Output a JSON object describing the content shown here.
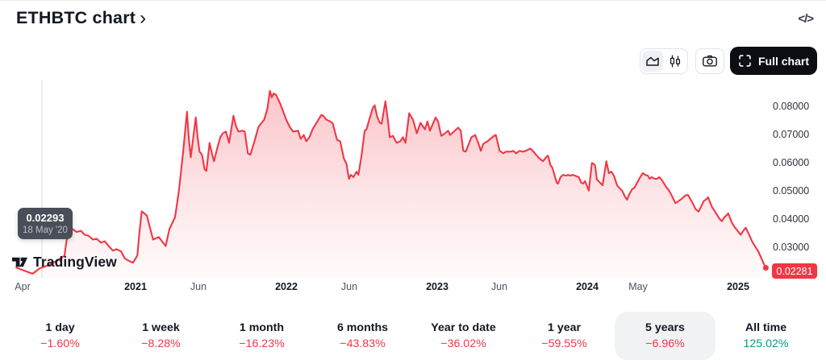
{
  "header": {
    "title": "ETHBTC chart",
    "chevron": "›",
    "code_icon": "</>"
  },
  "toolbar": {
    "full_chart_label": "Full chart",
    "icons": [
      "area-chart-icon",
      "candlestick-icon",
      "camera-icon",
      "fullscreen-icon"
    ],
    "selected_chart_type": "area"
  },
  "watermark": {
    "text": "TradingView"
  },
  "colors": {
    "accent_red": "#F23645",
    "up_green": "#089981",
    "text_dark": "#131722",
    "pill_bg": "#F1F2F4",
    "tooltip_bg": "#4A4E58",
    "border": "#E1E3EA",
    "button_black": "#0C0E13"
  },
  "chart_data": {
    "type": "area",
    "symbol": "ETHBTC",
    "grid": false,
    "line_color": "#F23645",
    "fill": "red gradient fading downward",
    "last_price": "0.02281",
    "last_price_value": 0.02281,
    "tooltip": {
      "price": "0.02293",
      "date": "18 May '20",
      "t": 1.55
    },
    "x_axis": {
      "t_unit": "months since Apr 2020",
      "labels": [
        {
          "text": "Apr",
          "t": 0,
          "bold": false
        },
        {
          "text": "2021",
          "t": 9,
          "bold": true
        },
        {
          "text": "Jun",
          "t": 14,
          "bold": false
        },
        {
          "text": "2022",
          "t": 21,
          "bold": true
        },
        {
          "text": "Jun",
          "t": 26,
          "bold": false
        },
        {
          "text": "2023",
          "t": 33,
          "bold": true
        },
        {
          "text": "Jun",
          "t": 38,
          "bold": false
        },
        {
          "text": "2024",
          "t": 45,
          "bold": true
        },
        {
          "text": "May",
          "t": 49,
          "bold": false
        },
        {
          "text": "2025",
          "t": 57,
          "bold": true
        }
      ]
    },
    "y_axis": {
      "ticks": [
        0.08,
        0.07,
        0.06,
        0.05,
        0.04,
        0.03
      ],
      "tick_labels": [
        "0.08000",
        "0.07000",
        "0.06000",
        "0.05000",
        "0.04000",
        "0.03000"
      ],
      "range": [
        0.02,
        0.088
      ]
    },
    "series": [
      {
        "name": "ETHBTC",
        "color": "#F23645",
        "points": [
          [
            -0.5,
            0.0229
          ],
          [
            0.15,
            0.0218
          ],
          [
            0.8,
            0.0207
          ],
          [
            1.4,
            0.0227
          ],
          [
            1.55,
            0.0229
          ],
          [
            2.1,
            0.0238
          ],
          [
            2.7,
            0.0252
          ],
          [
            3.35,
            0.0271
          ],
          [
            3.5,
            0.0323
          ],
          [
            3.7,
            0.0351
          ],
          [
            4.0,
            0.0365
          ],
          [
            4.3,
            0.0355
          ],
          [
            4.65,
            0.0359
          ],
          [
            4.95,
            0.0345
          ],
          [
            5.25,
            0.0342
          ],
          [
            5.6,
            0.0328
          ],
          [
            5.9,
            0.0331
          ],
          [
            6.25,
            0.0317
          ],
          [
            6.55,
            0.0322
          ],
          [
            6.9,
            0.0303
          ],
          [
            7.2,
            0.0289
          ],
          [
            7.5,
            0.0294
          ],
          [
            7.85,
            0.0286
          ],
          [
            8.15,
            0.0261
          ],
          [
            8.5,
            0.0252
          ],
          [
            8.8,
            0.0246
          ],
          [
            9.15,
            0.0272
          ],
          [
            9.3,
            0.035
          ],
          [
            9.5,
            0.0428
          ],
          [
            9.9,
            0.0413
          ],
          [
            10.4,
            0.0328
          ],
          [
            10.85,
            0.0337
          ],
          [
            11.4,
            0.0305
          ],
          [
            11.7,
            0.0365
          ],
          [
            12.15,
            0.0407
          ],
          [
            12.45,
            0.0498
          ],
          [
            12.8,
            0.064
          ],
          [
            13.1,
            0.078
          ],
          [
            13.25,
            0.0685
          ],
          [
            13.4,
            0.0619
          ],
          [
            13.6,
            0.069
          ],
          [
            13.8,
            0.076
          ],
          [
            13.95,
            0.069
          ],
          [
            14.1,
            0.0639
          ],
          [
            14.3,
            0.0628
          ],
          [
            14.5,
            0.0577
          ],
          [
            14.65,
            0.0571
          ],
          [
            14.9,
            0.067
          ],
          [
            15.1,
            0.063
          ],
          [
            15.25,
            0.0605
          ],
          [
            15.5,
            0.065
          ],
          [
            15.75,
            0.069
          ],
          [
            15.95,
            0.0704
          ],
          [
            16.2,
            0.071
          ],
          [
            16.45,
            0.067
          ],
          [
            16.8,
            0.0766
          ],
          [
            17.0,
            0.073
          ],
          [
            17.2,
            0.071
          ],
          [
            17.5,
            0.0713
          ],
          [
            17.7,
            0.071
          ],
          [
            17.95,
            0.0633
          ],
          [
            18.15,
            0.0628
          ],
          [
            18.5,
            0.068
          ],
          [
            18.8,
            0.0727
          ],
          [
            19.05,
            0.0741
          ],
          [
            19.25,
            0.0752
          ],
          [
            19.5,
            0.079
          ],
          [
            19.7,
            0.0854
          ],
          [
            19.85,
            0.0831
          ],
          [
            20.0,
            0.0845
          ],
          [
            20.2,
            0.084
          ],
          [
            20.5,
            0.0811
          ],
          [
            20.7,
            0.0789
          ],
          [
            21.0,
            0.0752
          ],
          [
            21.3,
            0.0725
          ],
          [
            21.55,
            0.071
          ],
          [
            21.95,
            0.0713
          ],
          [
            22.15,
            0.0684
          ],
          [
            22.4,
            0.0698
          ],
          [
            22.6,
            0.0676
          ],
          [
            22.85,
            0.069
          ],
          [
            23.1,
            0.0718
          ],
          [
            23.4,
            0.074
          ],
          [
            23.8,
            0.0769
          ],
          [
            23.95,
            0.0766
          ],
          [
            24.2,
            0.0752
          ],
          [
            24.5,
            0.0746
          ],
          [
            24.7,
            0.074
          ],
          [
            25.05,
            0.0681
          ],
          [
            25.3,
            0.0676
          ],
          [
            25.6,
            0.0614
          ],
          [
            25.8,
            0.0597
          ],
          [
            26.0,
            0.0543
          ],
          [
            26.15,
            0.0557
          ],
          [
            26.35,
            0.0549
          ],
          [
            26.6,
            0.0568
          ],
          [
            26.75,
            0.0557
          ],
          [
            27.0,
            0.0625
          ],
          [
            27.25,
            0.0713
          ],
          [
            27.4,
            0.0718
          ],
          [
            27.6,
            0.075
          ],
          [
            27.9,
            0.0794
          ],
          [
            28.05,
            0.0803
          ],
          [
            28.25,
            0.0762
          ],
          [
            28.45,
            0.0741
          ],
          [
            28.6,
            0.0738
          ],
          [
            28.9,
            0.0817
          ],
          [
            29.1,
            0.075
          ],
          [
            29.25,
            0.069
          ],
          [
            29.5,
            0.0695
          ],
          [
            29.8,
            0.067
          ],
          [
            30.1,
            0.0676
          ],
          [
            30.3,
            0.069
          ],
          [
            30.5,
            0.067
          ],
          [
            30.8,
            0.0775
          ],
          [
            31.1,
            0.0752
          ],
          [
            31.4,
            0.0704
          ],
          [
            31.7,
            0.0741
          ],
          [
            32.05,
            0.0718
          ],
          [
            32.25,
            0.0746
          ],
          [
            32.45,
            0.0713
          ],
          [
            32.9,
            0.076
          ],
          [
            33.1,
            0.0746
          ],
          [
            33.35,
            0.0695
          ],
          [
            33.65,
            0.0704
          ],
          [
            33.9,
            0.0713
          ],
          [
            34.05,
            0.0698
          ],
          [
            34.35,
            0.071
          ],
          [
            34.7,
            0.0724
          ],
          [
            34.9,
            0.0713
          ],
          [
            35.1,
            0.0642
          ],
          [
            35.3,
            0.0639
          ],
          [
            35.75,
            0.069
          ],
          [
            36.05,
            0.0698
          ],
          [
            36.3,
            0.067
          ],
          [
            36.5,
            0.0642
          ],
          [
            36.7,
            0.0667
          ],
          [
            37.05,
            0.0676
          ],
          [
            37.25,
            0.0684
          ],
          [
            37.55,
            0.0695
          ],
          [
            37.7,
            0.0698
          ],
          [
            38.0,
            0.0642
          ],
          [
            38.3,
            0.0633
          ],
          [
            38.5,
            0.0639
          ],
          [
            38.9,
            0.0639
          ],
          [
            39.1,
            0.0642
          ],
          [
            39.3,
            0.0633
          ],
          [
            39.6,
            0.0642
          ],
          [
            39.8,
            0.0639
          ],
          [
            40.1,
            0.0642
          ],
          [
            40.3,
            0.0647
          ],
          [
            40.45,
            0.065
          ],
          [
            40.7,
            0.0639
          ],
          [
            40.9,
            0.0628
          ],
          [
            41.2,
            0.0614
          ],
          [
            41.45,
            0.0605
          ],
          [
            41.7,
            0.0619
          ],
          [
            41.85,
            0.0625
          ],
          [
            42.05,
            0.0591
          ],
          [
            42.2,
            0.0582
          ],
          [
            42.55,
            0.0529
          ],
          [
            42.65,
            0.0526
          ],
          [
            42.85,
            0.0549
          ],
          [
            43.05,
            0.0557
          ],
          [
            43.3,
            0.0554
          ],
          [
            43.45,
            0.0557
          ],
          [
            43.65,
            0.0554
          ],
          [
            43.8,
            0.0557
          ],
          [
            44.0,
            0.0554
          ],
          [
            44.3,
            0.0549
          ],
          [
            44.5,
            0.0529
          ],
          [
            44.65,
            0.0526
          ],
          [
            44.8,
            0.0535
          ],
          [
            45.0,
            0.0512
          ],
          [
            45.1,
            0.0501
          ],
          [
            45.35,
            0.0599
          ],
          [
            45.45,
            0.0597
          ],
          [
            45.6,
            0.0591
          ],
          [
            45.75,
            0.054
          ],
          [
            45.9,
            0.0534
          ],
          [
            46.2,
            0.052
          ],
          [
            46.5,
            0.0605
          ],
          [
            46.7,
            0.0563
          ],
          [
            46.9,
            0.0568
          ],
          [
            47.1,
            0.0554
          ],
          [
            47.35,
            0.052
          ],
          [
            47.5,
            0.0512
          ],
          [
            47.75,
            0.0501
          ],
          [
            48.0,
            0.0478
          ],
          [
            48.15,
            0.0469
          ],
          [
            48.3,
            0.0486
          ],
          [
            48.55,
            0.0506
          ],
          [
            48.75,
            0.0512
          ],
          [
            48.95,
            0.053
          ],
          [
            49.2,
            0.0549
          ],
          [
            49.4,
            0.0563
          ],
          [
            49.6,
            0.0557
          ],
          [
            49.8,
            0.0554
          ],
          [
            49.95,
            0.0543
          ],
          [
            50.1,
            0.0549
          ],
          [
            50.35,
            0.0543
          ],
          [
            50.55,
            0.0543
          ],
          [
            50.7,
            0.0549
          ],
          [
            50.9,
            0.054
          ],
          [
            51.1,
            0.0526
          ],
          [
            51.3,
            0.0512
          ],
          [
            51.5,
            0.0501
          ],
          [
            51.7,
            0.0484
          ],
          [
            52.0,
            0.0457
          ],
          [
            52.25,
            0.0464
          ],
          [
            52.5,
            0.0472
          ],
          [
            52.8,
            0.0484
          ],
          [
            53.0,
            0.0486
          ],
          [
            53.4,
            0.0455
          ],
          [
            53.6,
            0.0436
          ],
          [
            53.85,
            0.0427
          ],
          [
            54.25,
            0.0464
          ],
          [
            54.5,
            0.0472
          ],
          [
            54.6,
            0.0478
          ],
          [
            54.9,
            0.0444
          ],
          [
            55.15,
            0.0427
          ],
          [
            55.5,
            0.0402
          ],
          [
            55.7,
            0.0393
          ],
          [
            55.9,
            0.0407
          ],
          [
            56.1,
            0.0415
          ],
          [
            56.2,
            0.0421
          ],
          [
            56.5,
            0.0387
          ],
          [
            56.75,
            0.037
          ],
          [
            57.0,
            0.0356
          ],
          [
            57.2,
            0.0345
          ],
          [
            57.4,
            0.0359
          ],
          [
            57.6,
            0.037
          ],
          [
            57.9,
            0.0342
          ],
          [
            58.1,
            0.0322
          ],
          [
            58.35,
            0.0303
          ],
          [
            58.6,
            0.0286
          ],
          [
            58.8,
            0.0266
          ],
          [
            59.0,
            0.0246
          ],
          [
            59.2,
            0.02281
          ]
        ]
      }
    ]
  },
  "stats": [
    {
      "label": "1 day",
      "value": "−1.60%",
      "selected": false,
      "up": false
    },
    {
      "label": "1 week",
      "value": "−8.28%",
      "selected": false,
      "up": false
    },
    {
      "label": "1 month",
      "value": "−16.23%",
      "selected": false,
      "up": false
    },
    {
      "label": "6 months",
      "value": "−43.83%",
      "selected": false,
      "up": false
    },
    {
      "label": "Year to date",
      "value": "−36.02%",
      "selected": false,
      "up": false
    },
    {
      "label": "1 year",
      "value": "−59.55%",
      "selected": false,
      "up": false
    },
    {
      "label": "5 years",
      "value": "−6.96%",
      "selected": true,
      "up": false
    },
    {
      "label": "All time",
      "value": "125.02%",
      "selected": false,
      "up": true
    }
  ]
}
